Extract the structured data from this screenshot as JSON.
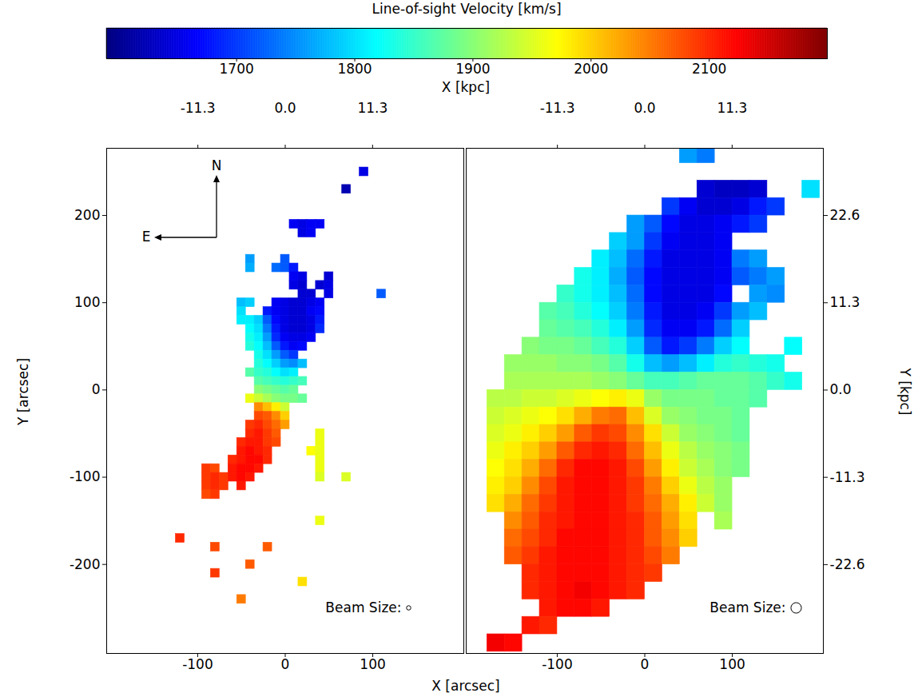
{
  "chart_data": {
    "type": "heatmap",
    "xlabel": "X [arcsec]",
    "ylabel": "Y [arcsec]",
    "x2label": "X [kpc]",
    "y2label": "Y [kpc]",
    "colorbar": {
      "label": "Line-of-sight Velocity [km/s]",
      "range": [
        1590,
        2200
      ],
      "ticks": [
        1700,
        1800,
        1900,
        2000,
        2100
      ]
    },
    "panels": [
      {
        "xlim": [
          -204,
          204
        ],
        "xticks": [
          -100,
          0,
          100
        ],
        "x2lim": [
          -23.1,
          23.1
        ],
        "x2ticks": [
          -11.3,
          {
            "value": 0,
            "label": "0.0"
          },
          11.3
        ],
        "ylim": [
          -302,
          277
        ],
        "yticks": [
          -200,
          -100,
          0,
          100,
          200
        ],
        "compass": {
          "north": "N",
          "east": "E"
        },
        "beam": {
          "label": "Beam Size:",
          "size": 5
        },
        "cell_size": 10,
        "rows": [
          {
            "y": 250,
            "x0": 90,
            "values": [
              1650
            ]
          },
          {
            "y": 230,
            "x0": 70,
            "values": [
              1620
            ]
          },
          {
            "y": 190,
            "x0": 10,
            "values": [
              1660,
              1650,
              1660,
              1660
            ]
          },
          {
            "y": 180,
            "x0": 20,
            "values": [
              1650,
              1660
            ]
          },
          {
            "y": 150,
            "x0": -40,
            "values": [
              1760,
              null,
              null,
              null,
              1720
            ]
          },
          {
            "y": 140,
            "x0": -40,
            "values": [
              1770,
              null,
              null,
              1730,
              1720,
              1680
            ]
          },
          {
            "y": 130,
            "x0": 10,
            "values": [
              1660,
              1650,
              null,
              null,
              1640
            ]
          },
          {
            "y": 120,
            "x0": 10,
            "values": [
              1650,
              1640,
              null,
              1640,
              1650
            ]
          },
          {
            "y": 110,
            "x0": 20,
            "values": [
              1640,
              1640,
              null,
              1650,
              null,
              null,
              null,
              null,
              null,
              1720
            ]
          },
          {
            "y": 100,
            "x0": -50,
            "values": [
              1780,
              1790,
              null,
              null,
              1660,
              1650,
              1640,
              1640,
              1650,
              1660
            ]
          },
          {
            "y": 90,
            "x0": -50,
            "values": [
              1800,
              null,
              null,
              1680,
              1660,
              1650,
              1640,
              1640,
              1660,
              1670
            ]
          },
          {
            "y": 80,
            "x0": -50,
            "values": [
              1810,
              1810,
              1790,
              1720,
              1670,
              1650,
              1640,
              1640,
              1650,
              1680
            ]
          },
          {
            "y": 70,
            "x0": -40,
            "values": [
              1820,
              1800,
              1740,
              1680,
              1650,
              1640,
              1640,
              1650,
              1690
            ]
          },
          {
            "y": 60,
            "x0": -40,
            "values": [
              1830,
              1810,
              1760,
              1690,
              1660,
              1650,
              1650,
              1660
            ]
          },
          {
            "y": 50,
            "x0": -40,
            "values": [
              1840,
              1820,
              1780,
              1720,
              1680,
              1660,
              1670
            ]
          },
          {
            "y": 40,
            "x0": -30,
            "values": [
              1830,
              1800,
              1760,
              1720,
              1700
            ]
          },
          {
            "y": 30,
            "x0": -30,
            "values": [
              1840,
              1820,
              1790,
              1760,
              1750,
              1780
            ]
          },
          {
            "y": 20,
            "x0": -40,
            "values": [
              1870,
              1850,
              1840,
              1820,
              1800,
              1810
            ]
          },
          {
            "y": 10,
            "x0": -30,
            "values": [
              1870,
              1860,
              1850,
              1840,
              1850,
              1860
            ]
          },
          {
            "y": 0,
            "x0": -30,
            "values": [
              1900,
              1890,
              1880,
              1870,
              1880
            ]
          },
          {
            "y": -10,
            "x0": -40,
            "values": [
              1960,
              1940,
              1920,
              1900,
              1890,
              1890,
              1880
            ]
          },
          {
            "y": -20,
            "x0": -30,
            "values": [
              2040,
              2010,
              1980,
              1940
            ]
          },
          {
            "y": -30,
            "x0": -30,
            "values": [
              2080,
              2070,
              2040,
              2000
            ]
          },
          {
            "y": -40,
            "x0": -40,
            "values": [
              2090,
              2100,
              2080,
              2060,
              2030
            ]
          },
          {
            "y": -50,
            "x0": -40,
            "values": [
              2100,
              2110,
              2090,
              2070,
              null,
              null,
              null,
              null,
              1960
            ]
          },
          {
            "y": -60,
            "x0": -50,
            "values": [
              2100,
              2110,
              2110,
              2090,
              2080,
              null,
              null,
              null,
              null,
              1960
            ]
          },
          {
            "y": -70,
            "x0": -50,
            "values": [
              2110,
              2120,
              2110,
              2100,
              null,
              null,
              null,
              null,
              1970,
              1960
            ]
          },
          {
            "y": -80,
            "x0": -60,
            "values": [
              2100,
              2110,
              2120,
              2120,
              2100,
              null,
              null,
              null,
              null,
              null,
              1960
            ]
          },
          {
            "y": -90,
            "x0": -90,
            "values": [
              2090,
              2080,
              null,
              2110,
              2120,
              2120,
              2110,
              null,
              null,
              null,
              null,
              null,
              null,
              1960
            ]
          },
          {
            "y": -100,
            "x0": -90,
            "values": [
              2090,
              2100,
              2090,
              2110,
              2120,
              2110,
              null,
              null,
              null,
              null,
              null,
              null,
              null,
              1950,
              null,
              null,
              1950
            ]
          },
          {
            "y": -110,
            "x0": -90,
            "values": [
              2090,
              2100,
              2090,
              null,
              2110
            ]
          },
          {
            "y": -120,
            "x0": -90,
            "values": [
              2080,
              2090
            ]
          },
          {
            "y": -150,
            "x0": 40,
            "values": [
              1960
            ]
          },
          {
            "y": -170,
            "x0": -120,
            "values": [
              2100
            ]
          },
          {
            "y": -180,
            "x0": -80,
            "values": [
              2080,
              null,
              null,
              null,
              null,
              null,
              2070
            ]
          },
          {
            "y": -200,
            "x0": -40,
            "values": [
              2070
            ]
          },
          {
            "y": -210,
            "x0": -80,
            "values": [
              2090
            ]
          },
          {
            "y": -220,
            "x0": 20,
            "values": [
              1990
            ]
          },
          {
            "y": -240,
            "x0": -50,
            "values": [
              2050
            ]
          }
        ]
      },
      {
        "xlim": [
          -204,
          204
        ],
        "xticks": [
          -100,
          0,
          100
        ],
        "x2lim": [
          -23.1,
          23.1
        ],
        "x2ticks": [
          -11.3,
          {
            "value": 0,
            "label": "0.0"
          },
          11.3
        ],
        "ylim": [
          -302,
          277
        ],
        "y2lim": [
          -34.1,
          31.3
        ],
        "y2ticks": [
          -22.6,
          -11.3,
          {
            "value": 0,
            "label": "0.0"
          },
          11.3,
          22.6
        ],
        "beam": {
          "label": "Beam Size:",
          "size": 12
        },
        "cell_size": 20,
        "rows": [
          {
            "y": 270,
            "x0": 50,
            "values": [
              1760,
              1740
            ]
          },
          {
            "y": 230,
            "x0": 70,
            "values": [
              1640,
              1630,
              1630,
              1640,
              null,
              null,
              1800
            ]
          },
          {
            "y": 210,
            "x0": 30,
            "values": [
              1700,
              1660,
              1640,
              1640,
              1650,
              1680,
              1700
            ]
          },
          {
            "y": 190,
            "x0": -10,
            "values": [
              1760,
              1720,
              1670,
              1650,
              1650,
              1660,
              1680,
              1700
            ]
          },
          {
            "y": 170,
            "x0": -30,
            "values": [
              1790,
              1760,
              1700,
              1660,
              1650,
              1650,
              1660
            ]
          },
          {
            "y": 150,
            "x0": -50,
            "values": [
              1810,
              1780,
              1730,
              1680,
              1650,
              1650,
              1650,
              1660,
              1740,
              1760
            ]
          },
          {
            "y": 130,
            "x0": -70,
            "values": [
              1830,
              1810,
              1770,
              1720,
              1670,
              1650,
              1650,
              1650,
              1660,
              1720,
              1740,
              1760
            ]
          },
          {
            "y": 110,
            "x0": -90,
            "values": [
              1850,
              1830,
              1810,
              1780,
              1730,
              1670,
              1650,
              1650,
              1650,
              1670,
              null,
              1760,
              1750
            ]
          },
          {
            "y": 90,
            "x0": -110,
            "values": [
              1870,
              1860,
              1840,
              1820,
              1790,
              1740,
              1680,
              1650,
              1650,
              1660,
              1700,
              1760,
              1780
            ]
          },
          {
            "y": 70,
            "x0": -110,
            "values": [
              1880,
              1870,
              1860,
              1840,
              1810,
              1760,
              1690,
              1660,
              1660,
              1680,
              1730,
              1790
            ]
          },
          {
            "y": 50,
            "x0": -130,
            "values": [
              1900,
              1890,
              1890,
              1880,
              1860,
              1840,
              1790,
              1720,
              1680,
              1700,
              1740,
              1790,
              1820,
              null,
              null,
              1820
            ]
          },
          {
            "y": 30,
            "x0": -150,
            "values": [
              1910,
              1910,
              1910,
              1900,
              1900,
              1890,
              1870,
              1830,
              1780,
              1760,
              1780,
              1810,
              1840,
              1850,
              1840,
              1830
            ]
          },
          {
            "y": 10,
            "x0": -150,
            "values": [
              1920,
              1920,
              1920,
              1920,
              1920,
              1910,
              1900,
              1880,
              1860,
              1860,
              1870,
              1880,
              1880,
              1880,
              1870,
              1850,
              1830
            ]
          },
          {
            "y": -10,
            "x0": -170,
            "values": [
              1930,
              1930,
              1940,
              1940,
              1950,
              1960,
              1970,
              1980,
              1960,
              1910,
              1890,
              1890,
              1890,
              1880,
              1880,
              1870
            ]
          },
          {
            "y": -30,
            "x0": -170,
            "values": [
              1940,
              1950,
              1960,
              1970,
              1990,
              2020,
              2050,
              2060,
              2010,
              1950,
              1910,
              1900,
              1890,
              1890,
              1880
            ]
          },
          {
            "y": -50,
            "x0": -170,
            "values": [
              1950,
              1960,
              1980,
              2000,
              2030,
              2070,
              2090,
              2080,
              2040,
              1990,
              1940,
              1910,
              1900,
              1890,
              1880
            ]
          },
          {
            "y": -70,
            "x0": -170,
            "values": [
              1960,
              1980,
              2000,
              2030,
              2070,
              2100,
              2110,
              2100,
              2060,
              2010,
              1960,
              1930,
              1910,
              1900,
              1890
            ]
          },
          {
            "y": -90,
            "x0": -170,
            "values": [
              1970,
              1990,
              2020,
              2060,
              2100,
              2120,
              2120,
              2110,
              2080,
              2030,
              1980,
              1940,
              1920,
              1900,
              1890
            ]
          },
          {
            "y": -110,
            "x0": -170,
            "values": [
              1980,
              2000,
              2040,
              2080,
              2110,
              2120,
              2120,
              2110,
              2090,
              2050,
              2000,
              1960,
              1930,
              1910
            ]
          },
          {
            "y": -130,
            "x0": -170,
            "values": [
              1990,
              2020,
              2060,
              2090,
              2110,
              2120,
              2120,
              2110,
              2090,
              2060,
              2020,
              1980,
              1940,
              1910
            ]
          },
          {
            "y": -150,
            "x0": -150,
            "values": [
              2040,
              2070,
              2100,
              2110,
              2120,
              2120,
              2110,
              2100,
              2070,
              2030,
              1990,
              null,
              1920
            ]
          },
          {
            "y": -170,
            "x0": -150,
            "values": [
              2060,
              2080,
              2100,
              2120,
              2120,
              2120,
              2110,
              2100,
              2070,
              2040,
              2000
            ]
          },
          {
            "y": -190,
            "x0": -150,
            "values": [
              2070,
              2090,
              2110,
              2120,
              2120,
              2120,
              2110,
              2100,
              2080,
              2050
            ]
          },
          {
            "y": -210,
            "x0": -130,
            "values": [
              2100,
              2110,
              2120,
              2120,
              2120,
              2110,
              2100,
              2090
            ]
          },
          {
            "y": -230,
            "x0": -130,
            "values": [
              2100,
              2110,
              2120,
              2130,
              2120,
              2110,
              2100
            ]
          },
          {
            "y": -250,
            "x0": -110,
            "values": [
              2110,
              2120,
              2120,
              2110
            ]
          },
          {
            "y": -270,
            "x0": -130,
            "values": [
              2110,
              2100
            ]
          },
          {
            "y": -290,
            "x0": -170,
            "values": [
              2130,
              2120
            ]
          }
        ]
      }
    ]
  }
}
